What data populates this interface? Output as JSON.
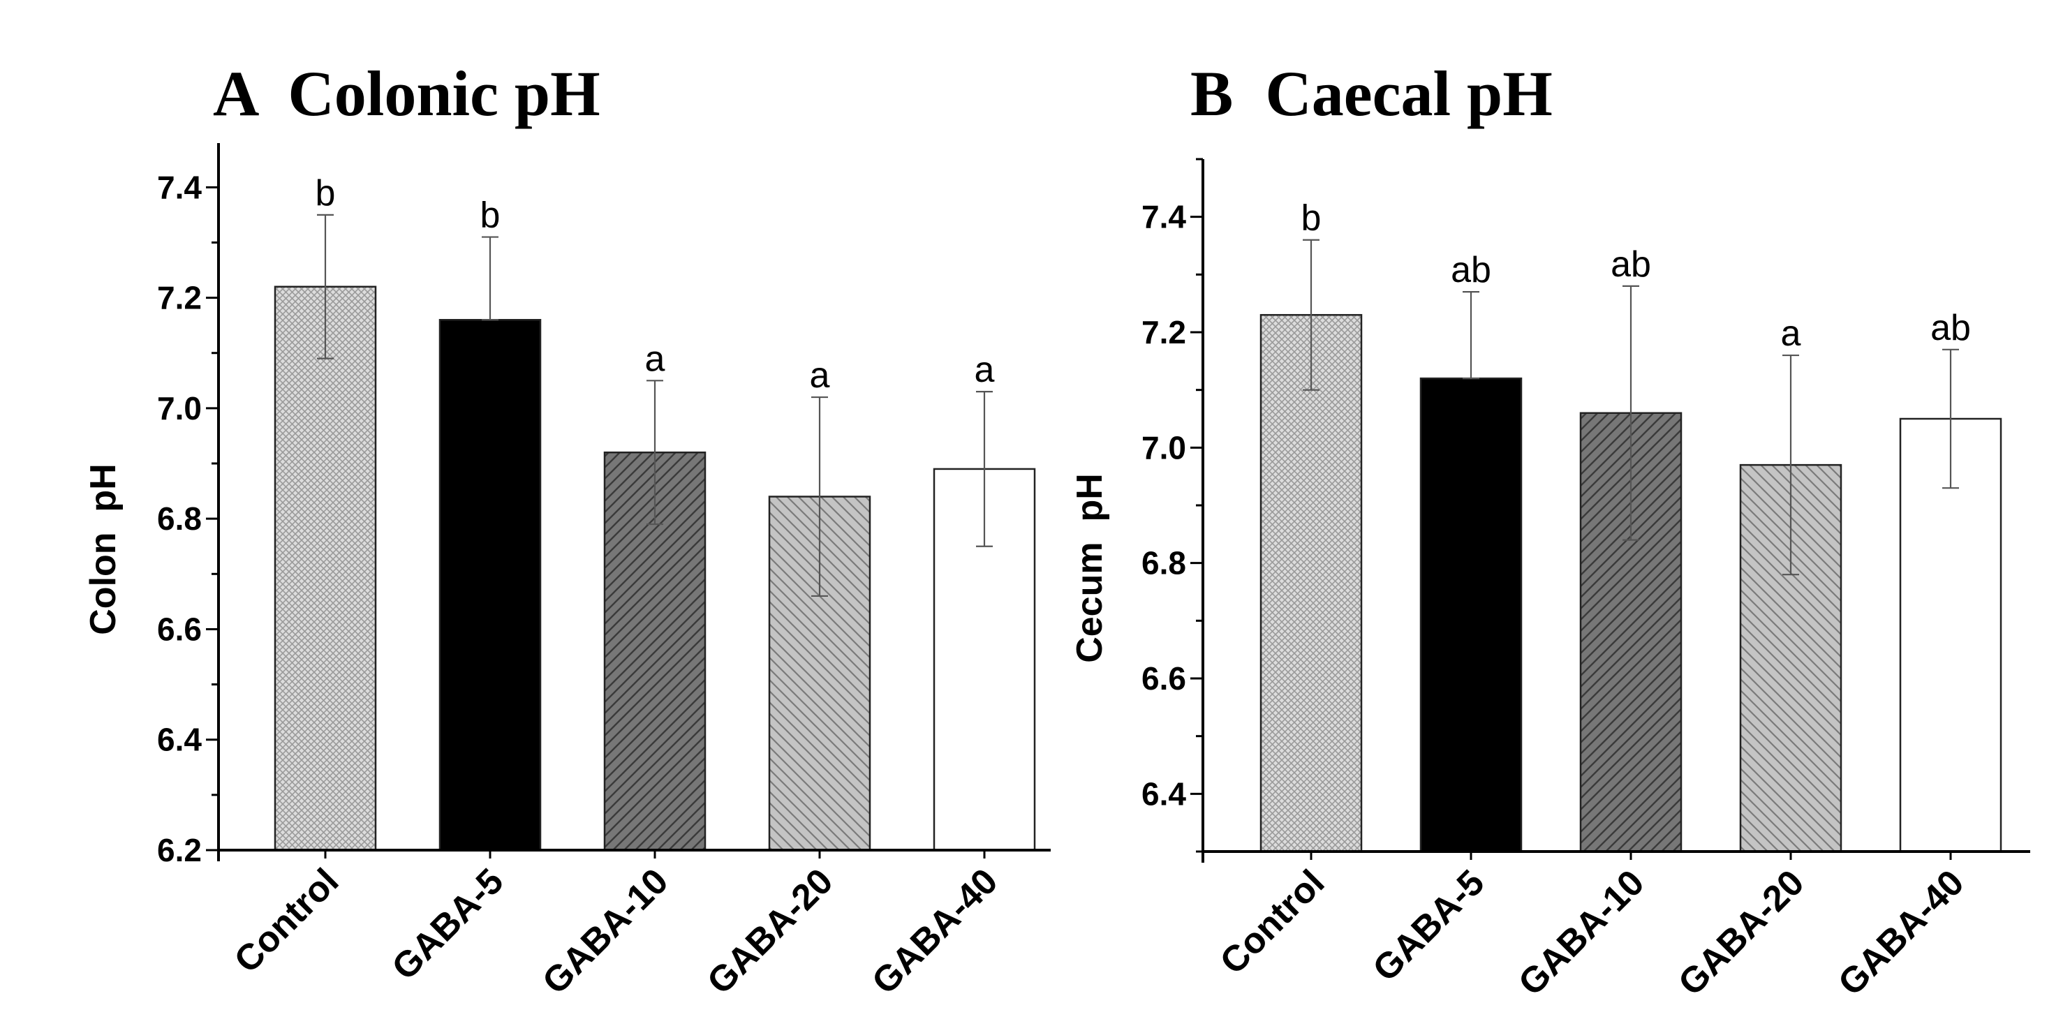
{
  "chart_data": [
    {
      "type": "bar",
      "title": "A  Colonic pH",
      "xlabel": "",
      "ylabel": "Colon  pH",
      "ylim": [
        6.2,
        7.48
      ],
      "yticks": [
        6.2,
        6.4,
        6.6,
        6.8,
        7.0,
        7.2,
        7.4
      ],
      "ytick_labels": [
        "6.2",
        "6.4",
        "6.6",
        "6.8",
        "7.0",
        "7.2",
        "7.4"
      ],
      "categories": [
        "Control",
        "GABA-5",
        "GABA-10",
        "GABA-20",
        "GABA-40"
      ],
      "values": [
        7.22,
        7.16,
        6.92,
        6.84,
        6.89
      ],
      "error_upper": [
        7.35,
        7.31,
        7.05,
        7.02,
        7.03
      ],
      "error_lower": [
        7.09,
        7.16,
        6.79,
        6.66,
        6.75
      ],
      "significance": [
        "b",
        "b",
        "a",
        "a",
        "a"
      ]
    },
    {
      "type": "bar",
      "title": "B  Caecal pH",
      "xlabel": "",
      "ylabel": "Cecum  pH",
      "ylim": [
        6.3,
        7.5
      ],
      "yticks": [
        6.4,
        6.6,
        6.8,
        7.0,
        7.2,
        7.4
      ],
      "ytick_labels": [
        "6.4",
        "6.6",
        "6.8",
        "7.0",
        "7.2",
        "7.4"
      ],
      "categories": [
        "Control",
        "GABA-5",
        "GABA-10",
        "GABA-20",
        "GABA-40"
      ],
      "values": [
        7.23,
        7.12,
        7.06,
        6.97,
        7.05
      ],
      "error_upper": [
        7.36,
        7.27,
        7.28,
        7.16,
        7.17
      ],
      "error_lower": [
        7.1,
        7.12,
        6.84,
        6.78,
        6.93
      ],
      "significance": [
        "b",
        "ab",
        "ab",
        "a",
        "ab"
      ]
    }
  ],
  "colors": {
    "axis": "#000000",
    "bar_outline": "#222222",
    "fills": [
      "#d4d4d4",
      "#000000",
      "#6f6f6f",
      "#bdbdbd",
      "#ffffff"
    ],
    "pattern_lines": [
      "#ffffff",
      "#000000",
      "#3a3a3a",
      "#7a7a7a",
      "#ffffff"
    ]
  },
  "fill_patterns": [
    "crosshatch",
    "solid",
    "diagonal-right",
    "diagonal-left",
    "none"
  ]
}
